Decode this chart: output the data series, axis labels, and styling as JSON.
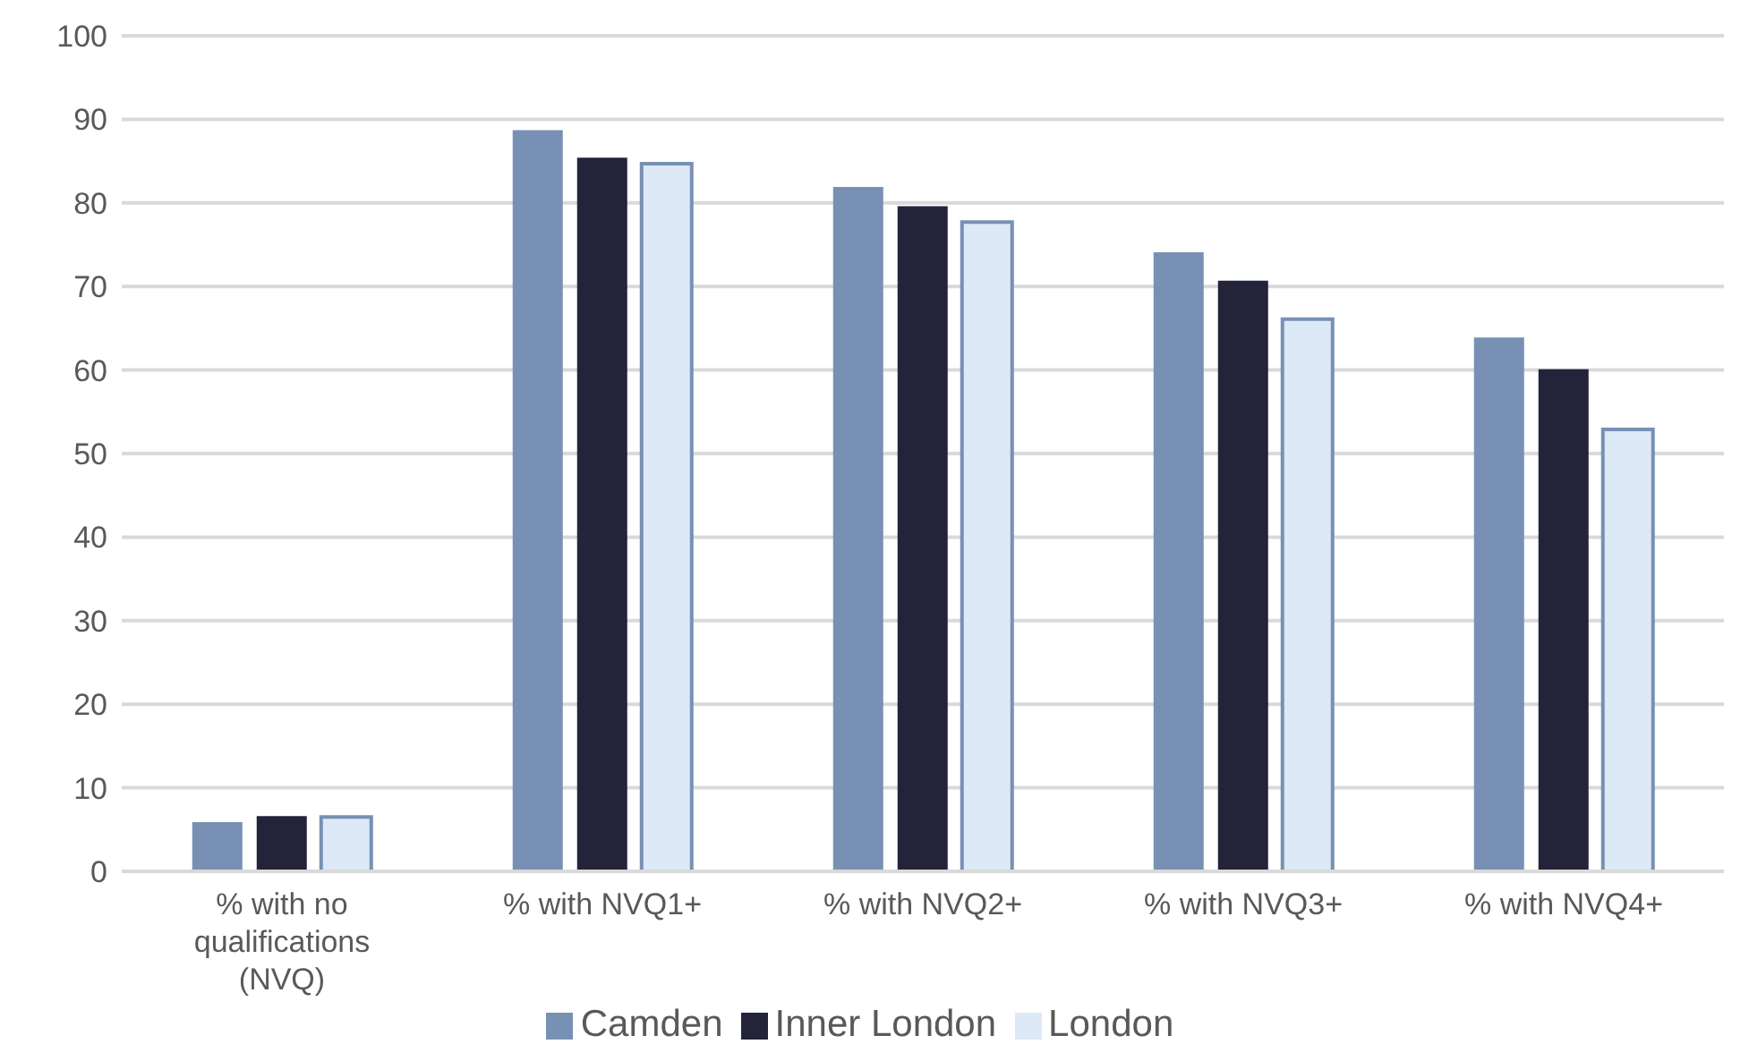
{
  "chart_data": {
    "type": "bar",
    "categories": [
      "% with no qualifications (NVQ)",
      "% with NVQ1+",
      "% with NVQ2+",
      "% with NVQ3+",
      "% with NVQ4+"
    ],
    "series": [
      {
        "name": "Camden",
        "color": "#7790b4",
        "values": [
          5.9,
          88.7,
          81.9,
          74.1,
          63.9
        ]
      },
      {
        "name": "Inner London",
        "color": "#23233a",
        "values": [
          6.6,
          85.4,
          79.6,
          70.7,
          60.1
        ]
      },
      {
        "name": "London",
        "color": "#dde9f6",
        "values": [
          6.5,
          84.7,
          77.7,
          66.1,
          52.9
        ]
      }
    ],
    "ylim": [
      0,
      100
    ],
    "yticks": [
      0,
      10,
      20,
      30,
      40,
      50,
      60,
      70,
      80,
      90,
      100
    ],
    "grid": "y",
    "legend": "bottom"
  }
}
